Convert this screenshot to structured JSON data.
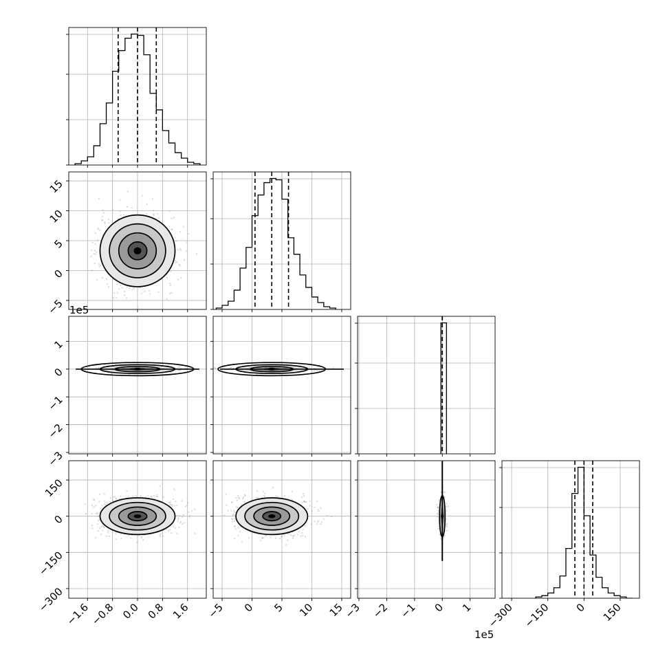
{
  "chart_data": {
    "type": "corner",
    "parameters": [
      {
        "index": 0,
        "xticks": [
          "−1.6",
          "−0.8",
          "0.0",
          "0.8",
          "1.6"
        ],
        "xtick_values": [
          -1.6,
          -0.8,
          0.0,
          0.8,
          1.6
        ],
        "range": [
          -2.2,
          2.2
        ],
        "quantiles": [
          -0.62,
          0.0,
          0.6
        ],
        "hist_bins": [
          -2.0,
          -1.8,
          -1.6,
          -1.4,
          -1.2,
          -1.0,
          -0.8,
          -0.6,
          -0.4,
          -0.2,
          0.0,
          0.2,
          0.4,
          0.6,
          0.8,
          1.0,
          1.2,
          1.4,
          1.6,
          1.8,
          2.0
        ],
        "hist_counts": [
          1,
          3,
          6,
          14,
          30,
          45,
          68,
          83,
          92,
          95,
          94,
          80,
          52,
          40,
          25,
          16,
          9,
          5,
          2,
          1
        ]
      },
      {
        "index": 1,
        "xticks": [
          "−5",
          "0",
          "5",
          "10",
          "15"
        ],
        "xtick_values": [
          -5,
          0,
          5,
          10,
          15
        ],
        "range": [
          -6.5,
          16.5
        ],
        "yticks": [
          "−5",
          "0",
          "5",
          "10",
          "15"
        ],
        "ytick_values": [
          -5,
          0,
          5,
          10,
          15
        ],
        "quantiles": [
          0.5,
          3.3,
          6.1
        ],
        "hist_bins": [
          -6,
          -5,
          -4,
          -3,
          -2,
          -1,
          0,
          1,
          2,
          3,
          4,
          5,
          6,
          7,
          8,
          9,
          10,
          11,
          12,
          13,
          14
        ],
        "hist_counts": [
          1,
          3,
          6,
          14,
          30,
          45,
          68,
          83,
          92,
          95,
          94,
          80,
          52,
          40,
          25,
          16,
          9,
          5,
          2,
          1
        ]
      },
      {
        "index": 2,
        "xticks": [
          "−3",
          "−2",
          "−1",
          "0",
          "1"
        ],
        "xtick_values": [
          -3,
          -2,
          -1,
          0,
          1
        ],
        "range": [
          -3.05,
          1.9
        ],
        "yticks": [
          "−3",
          "−2",
          "−1",
          "0",
          "1"
        ],
        "ytick_values": [
          -3,
          -2,
          -1,
          0,
          1
        ],
        "scale_label": "1e5",
        "quantiles": [
          0.0,
          0.0,
          0.0
        ],
        "hist_bins": [
          -0.05,
          0.15
        ],
        "hist_counts": [
          100
        ]
      },
      {
        "index": 3,
        "xticks": [
          "−300",
          "−150",
          "0",
          "150"
        ],
        "xtick_values": [
          -300,
          -150,
          0,
          150
        ],
        "range": [
          -340,
          230
        ],
        "yticks": [
          "−300",
          "−150",
          "0",
          "150"
        ],
        "ytick_values": [
          -300,
          -150,
          0,
          150
        ],
        "quantiles": [
          -38,
          0,
          36
        ],
        "hist_bins": [
          -200,
          -175,
          -150,
          -125,
          -100,
          -75,
          -50,
          -25,
          0,
          25,
          50,
          75,
          100,
          125,
          150,
          175,
          200
        ],
        "hist_counts": [
          1,
          2,
          4,
          8,
          17,
          38,
          80,
          100,
          63,
          33,
          16,
          8,
          4,
          2,
          1,
          0
        ]
      }
    ],
    "histogram_ylim_fraction": 1.05,
    "sample_centers": [
      0.0,
      3.3,
      0.0,
      0.0
    ],
    "sample_spreads": [
      0.6,
      3.0,
      0.04,
      38
    ]
  }
}
